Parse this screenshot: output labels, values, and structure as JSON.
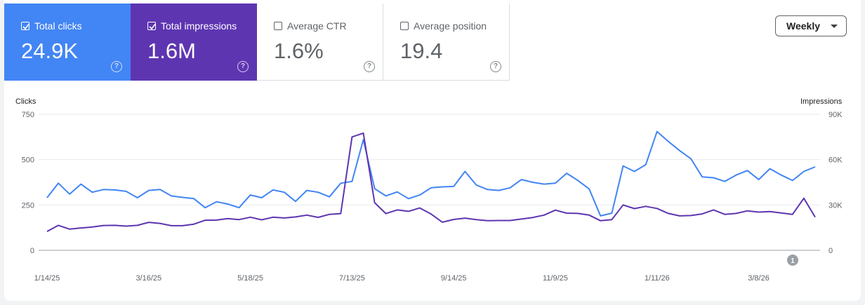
{
  "metrics": [
    {
      "label": "Total clicks",
      "value": "24.9K",
      "checked": true,
      "color": "#4285f4"
    },
    {
      "label": "Total impressions",
      "value": "1.6M",
      "checked": true,
      "color": "#5e35b1"
    },
    {
      "label": "Average CTR",
      "value": "1.6%",
      "checked": false
    },
    {
      "label": "Average position",
      "value": "19.4",
      "checked": false
    }
  ],
  "period_selector": {
    "label": "Weekly"
  },
  "annotation_marker": "1",
  "chart_data": {
    "type": "line",
    "left_axis": {
      "title": "Clicks",
      "ticks": [
        "0",
        "250",
        "500",
        "750"
      ],
      "range": [
        0,
        750
      ]
    },
    "right_axis": {
      "title": "Impressions",
      "ticks": [
        "0",
        "30K",
        "60K",
        "90K"
      ],
      "range": [
        0,
        90000
      ]
    },
    "x_tick_labels": [
      "1/14/25",
      "3/16/25",
      "5/18/25",
      "7/13/25",
      "9/14/25",
      "11/9/25",
      "1/11/26",
      "3/8/26"
    ],
    "series": [
      {
        "name": "Clicks",
        "color": "#4285f4",
        "axis": "left",
        "values": [
          290,
          370,
          310,
          365,
          320,
          335,
          333,
          325,
          290,
          330,
          335,
          300,
          292,
          285,
          235,
          268,
          255,
          235,
          305,
          290,
          333,
          320,
          270,
          330,
          320,
          295,
          370,
          380,
          610,
          340,
          300,
          322,
          285,
          305,
          345,
          350,
          352,
          435,
          360,
          335,
          330,
          345,
          390,
          375,
          365,
          370,
          425,
          385,
          338,
          190,
          205,
          465,
          435,
          472,
          655,
          600,
          550,
          505,
          405,
          400,
          380,
          415,
          440,
          390,
          450,
          415,
          385,
          435,
          460
        ]
      },
      {
        "name": "Impressions",
        "color": "#5e35b1",
        "axis": "right",
        "values": [
          12500,
          16500,
          14000,
          14800,
          15400,
          16400,
          16500,
          16000,
          16500,
          18500,
          17800,
          16300,
          16300,
          17300,
          19900,
          20000,
          21000,
          20300,
          21900,
          20200,
          21900,
          21400,
          22100,
          23300,
          21800,
          23800,
          24300,
          75000,
          77500,
          31500,
          24300,
          26700,
          25800,
          28000,
          24000,
          18600,
          20400,
          21300,
          20300,
          19600,
          19700,
          19700,
          20700,
          21700,
          23300,
          26600,
          24600,
          24400,
          23300,
          19600,
          20300,
          30000,
          27600,
          29100,
          27700,
          24400,
          22800,
          23000,
          24100,
          26700,
          23800,
          24400,
          26100,
          25300,
          25600,
          24700,
          23800,
          34400,
          22000
        ]
      }
    ]
  }
}
